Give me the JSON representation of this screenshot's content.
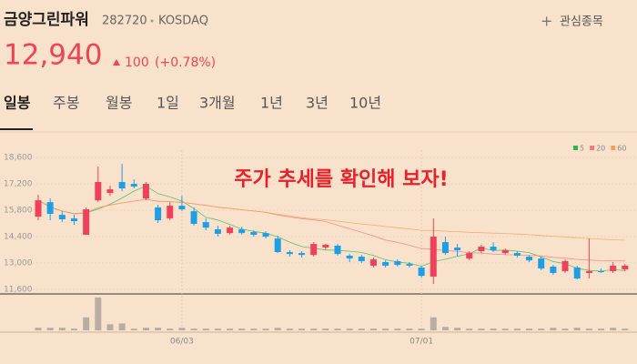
{
  "header": {
    "name": "금양그린파워",
    "code": "282720",
    "market": "KOSDAQ",
    "watch": "관심종목",
    "price": "12,940",
    "change": "100",
    "change_pct": "(+0.78%)"
  },
  "tabs": [
    "일봉",
    "주봉",
    "월봉",
    "1일",
    "3개월",
    "1년",
    "3년",
    "10년"
  ],
  "chart_data": {
    "type": "candlestick",
    "annotation": "주가 추세를 확인해 보자!",
    "categories": [
      null,
      null,
      null,
      null,
      null,
      null,
      null,
      null,
      null,
      null,
      null,
      null,
      "06/03",
      null,
      null,
      null,
      null,
      null,
      null,
      null,
      null,
      null,
      null,
      null,
      null,
      null,
      null,
      null,
      null,
      null,
      null,
      null,
      "07/01",
      null,
      null,
      null,
      null,
      null,
      null,
      null,
      null,
      null,
      null,
      null,
      null,
      null,
      null,
      null,
      null,
      null
    ],
    "open": [
      15460,
      16230,
      15560,
      15370,
      14500,
      16330,
      16720,
      17300,
      17200,
      16430,
      15950,
      15370,
      16040,
      15750,
      15170,
      14790,
      14590,
      14790,
      14640,
      14590,
      14300,
      13580,
      13530,
      13430,
      13820,
      13920,
      13390,
      13340,
      12860,
      13050,
      13100,
      12950,
      12760,
      12280,
      14110,
      13820,
      13240,
      13630,
      13870,
      13530,
      13530,
      13340,
      13240,
      12810,
      12570,
      12760,
      12470,
      12570,
      12570,
      12660
    ],
    "close": [
      16330,
      15610,
      15320,
      15220,
      15850,
      17300,
      16910,
      16960,
      17060,
      17200,
      15270,
      16040,
      15850,
      15080,
      14880,
      14550,
      14880,
      14590,
      14500,
      14400,
      13580,
      13480,
      13430,
      14010,
      13970,
      13480,
      13240,
      13100,
      13190,
      12860,
      12900,
      12860,
      12320,
      14400,
      13530,
      13680,
      13530,
      13870,
      13680,
      13680,
      13390,
      13140,
      12710,
      12470,
      13100,
      12180,
      12570,
      12520,
      12860,
      12860
    ],
    "high": [
      16620,
      16430,
      15750,
      15560,
      15950,
      18120,
      17100,
      18260,
      17440,
      17300,
      16090,
      16230,
      16570,
      15950,
      15370,
      14980,
      14980,
      14930,
      14740,
      14690,
      14450,
      13680,
      13630,
      14110,
      14010,
      14010,
      13480,
      13430,
      13290,
      13140,
      13190,
      13050,
      12860,
      15370,
      14400,
      14010,
      13630,
      13970,
      14110,
      13770,
      13630,
      13430,
      13340,
      12900,
      13190,
      12860,
      14300,
      12710,
      13050,
      12950
    ],
    "low": [
      15270,
      15270,
      15170,
      15030,
      14500,
      16230,
      16570,
      16810,
      16960,
      16330,
      15120,
      15270,
      15750,
      14980,
      14740,
      14400,
      14500,
      14500,
      14400,
      14300,
      13530,
      13340,
      13290,
      13340,
      13720,
      13390,
      13050,
      13000,
      12760,
      12760,
      12810,
      12760,
      12230,
      11890,
      13430,
      13340,
      13140,
      13530,
      13580,
      13430,
      13290,
      13050,
      12610,
      12370,
      12470,
      12130,
      12180,
      12470,
      12470,
      12570
    ],
    "volumes": [
      3,
      3,
      3,
      2,
      15,
      38,
      7,
      8,
      2,
      3,
      3,
      2,
      3,
      2,
      2,
      2,
      2,
      2,
      2,
      2,
      3,
      2,
      2,
      2,
      2,
      2,
      2,
      2,
      2,
      2,
      2,
      2,
      2,
      15,
      4,
      3,
      2,
      2,
      2,
      2,
      2,
      2,
      2,
      3,
      2,
      3,
      2,
      2,
      3,
      2
    ],
    "volume_lim": [
      0,
      40
    ],
    "up_color": "#f0415b",
    "down_color": "#1e9ee6",
    "ylim": [
      11360,
      18990
    ],
    "yticks": [
      {
        "value": 11600,
        "label": "11,600"
      },
      {
        "value": 13000,
        "label": "13,000"
      },
      {
        "value": 14400,
        "label": "14,400"
      },
      {
        "value": 15800,
        "label": "15,800"
      },
      {
        "value": 17200,
        "label": "17,200"
      },
      {
        "value": 18600,
        "label": "18,600"
      }
    ],
    "grid": true,
    "ma": [
      {
        "name": "5",
        "color": "#2fb84f"
      },
      {
        "name": "20",
        "color": "#f07a84"
      },
      {
        "name": "60",
        "color": "#f5a05a"
      }
    ]
  }
}
